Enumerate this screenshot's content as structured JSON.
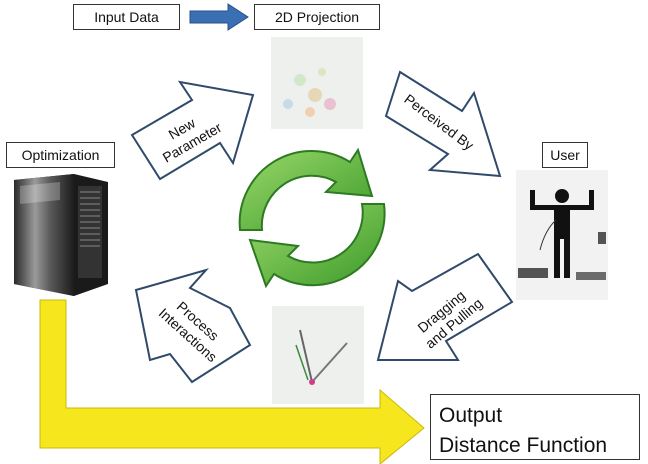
{
  "nodes": {
    "input_data": "Input Data",
    "projection": "2D Projection",
    "optimization": "Optimization",
    "user": "User",
    "output_line1": "Output",
    "output_line2": "Distance Function"
  },
  "arrows": {
    "new_parameter": [
      "New",
      "Parameter"
    ],
    "perceived_by": "Perceived By",
    "dragging": [
      "Dragging",
      "and Pulling"
    ],
    "process": [
      "Process",
      "Interactions"
    ]
  },
  "colors": {
    "flow_arrow": "#3a6fb4",
    "cycle_arrow": "#4caf3a",
    "output_arrow": "#f5e61e",
    "outline": "#2f4a6b"
  },
  "icons": {
    "server": "server-tower-icon",
    "user": "person-arms-raised-photo",
    "projection": "scatter-thumbnail",
    "interaction": "line-drag-thumbnail"
  }
}
